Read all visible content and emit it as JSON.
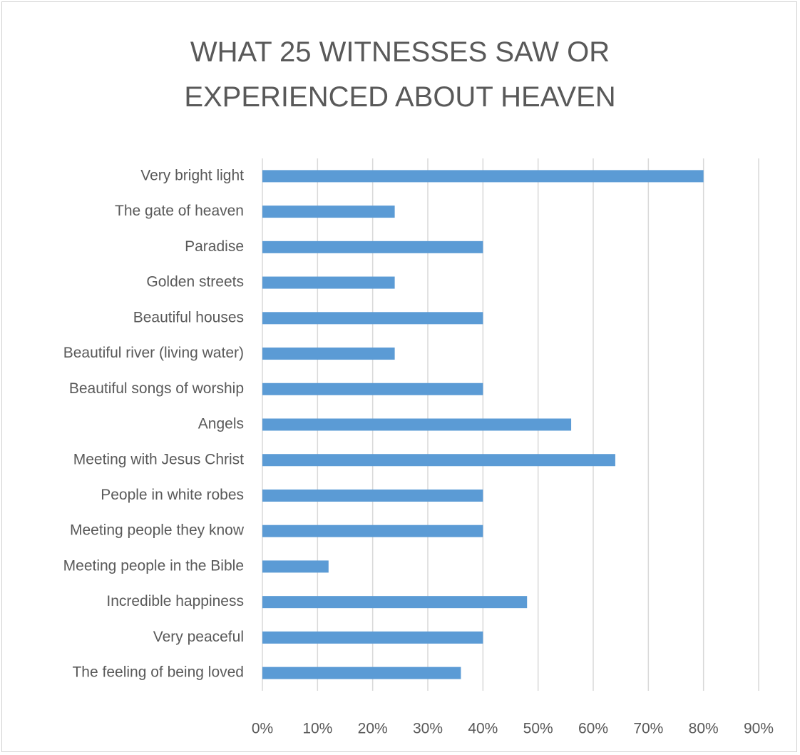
{
  "chart_data": {
    "type": "barh",
    "title": "WHAT 25 WITNESSES SAW OR EXPERIENCED ABOUT HEAVEN",
    "categories": [
      "Very bright light",
      "The gate of heaven",
      "Paradise",
      "Golden streets",
      "Beautiful houses",
      "Beautiful river (living water)",
      "Beautiful songs of worship",
      "Angels",
      "Meeting with Jesus Christ",
      "People in white robes",
      "Meeting people they know",
      "Meeting people in the Bible",
      "Incredible happiness",
      "Very peaceful",
      "The feeling of being loved"
    ],
    "values": [
      80,
      24,
      40,
      24,
      40,
      24,
      40,
      56,
      64,
      40,
      40,
      12,
      48,
      40,
      36
    ],
    "color": "#5b9bd5",
    "xlim": [
      0,
      90
    ],
    "xticks": [
      {
        "value": 0,
        "label": "0%"
      },
      {
        "value": 10,
        "label": "10%"
      },
      {
        "value": 20,
        "label": "20%"
      },
      {
        "value": 30,
        "label": "30%"
      },
      {
        "value": 40,
        "label": "40%"
      },
      {
        "value": 50,
        "label": "50%"
      },
      {
        "value": 60,
        "label": "60%"
      },
      {
        "value": 70,
        "label": "70%"
      },
      {
        "value": 80,
        "label": "80%"
      },
      {
        "value": 90,
        "label": "90%"
      }
    ],
    "grid": true
  }
}
